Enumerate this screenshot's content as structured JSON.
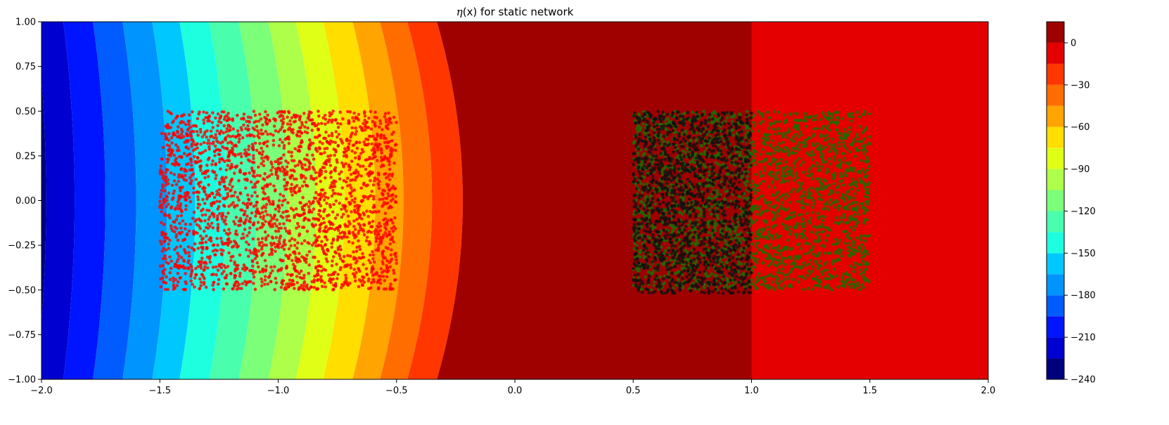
{
  "chart_data": {
    "type": "contour",
    "title": {
      "symbol": "η",
      "arg": "(x)",
      "suffix": " for static network"
    },
    "xlabel": "",
    "ylabel": "",
    "xlim": [
      -2.0,
      2.0
    ],
    "ylim": [
      -1.0,
      1.0
    ],
    "xticks": [
      "−2.0",
      "−1.5",
      "−1.0",
      "−0.5",
      "0.0",
      "0.5",
      "1.0",
      "1.5",
      "2.0"
    ],
    "xtick_values": [
      -2.0,
      -1.5,
      -1.0,
      -0.5,
      0.0,
      0.5,
      1.0,
      1.5,
      2.0
    ],
    "yticks": [
      "−1.00",
      "−0.75",
      "−0.50",
      "−0.25",
      "0.00",
      "0.25",
      "0.50",
      "0.75",
      "1.00"
    ],
    "ytick_values": [
      -1.0,
      -0.75,
      -0.5,
      -0.25,
      0.0,
      0.25,
      0.5,
      0.75,
      1.0
    ],
    "contour_levels": [
      -240,
      -225,
      -210,
      -195,
      -180,
      -165,
      -150,
      -135,
      -120,
      -105,
      -90,
      -75,
      -60,
      -45,
      -30,
      -15,
      0,
      15
    ],
    "contour_colors": [
      "#00007f",
      "#0000d0",
      "#0015ff",
      "#005cff",
      "#0094ff",
      "#00c8ff",
      "#1effe0",
      "#49ffad",
      "#7cff79",
      "#adff49",
      "#e0ff17",
      "#ffde00",
      "#ffa400",
      "#ff6d00",
      "#ff3600",
      "#e40000",
      "#9f0000"
    ],
    "contour_bands_x_at_y0": [
      {
        "x": -2.0,
        "level_index": 0
      },
      {
        "x": -1.98,
        "level_index": 1
      },
      {
        "x": -1.86,
        "level_index": 2
      },
      {
        "x": -1.73,
        "level_index": 3
      },
      {
        "x": -1.6,
        "level_index": 4
      },
      {
        "x": -1.47,
        "level_index": 5
      },
      {
        "x": -1.35,
        "level_index": 6
      },
      {
        "x": -1.22,
        "level_index": 7
      },
      {
        "x": -1.09,
        "level_index": 8
      },
      {
        "x": -0.96,
        "level_index": 9
      },
      {
        "x": -0.84,
        "level_index": 10
      },
      {
        "x": -0.72,
        "level_index": 11
      },
      {
        "x": -0.59,
        "level_index": 12
      },
      {
        "x": -0.47,
        "level_index": 13
      },
      {
        "x": -0.35,
        "level_index": 14
      },
      {
        "x": -0.22,
        "level_index": 16
      },
      {
        "x": 1.0,
        "level_index": 15
      }
    ],
    "colorbar": {
      "ticks": [
        "0",
        "−30",
        "−60",
        "−90",
        "−120",
        "−150",
        "−180",
        "−210",
        "−240"
      ],
      "tick_values": [
        0,
        -30,
        -60,
        -90,
        -120,
        -150,
        -180,
        -210,
        -240
      ]
    },
    "scatter_series": [
      {
        "color": "#ff0000",
        "x_range": [
          -1.5,
          -0.5
        ],
        "y_range": [
          -0.5,
          0.5
        ],
        "count": 2500
      },
      {
        "color": "#1a6e00",
        "x_range": [
          0.5,
          1.5
        ],
        "y_range": [
          -0.5,
          0.5
        ],
        "count": 2300
      },
      {
        "color": "#101010",
        "x_range": [
          0.5,
          1.0
        ],
        "y_range": [
          -0.52,
          0.5
        ],
        "count": 1500
      }
    ]
  }
}
